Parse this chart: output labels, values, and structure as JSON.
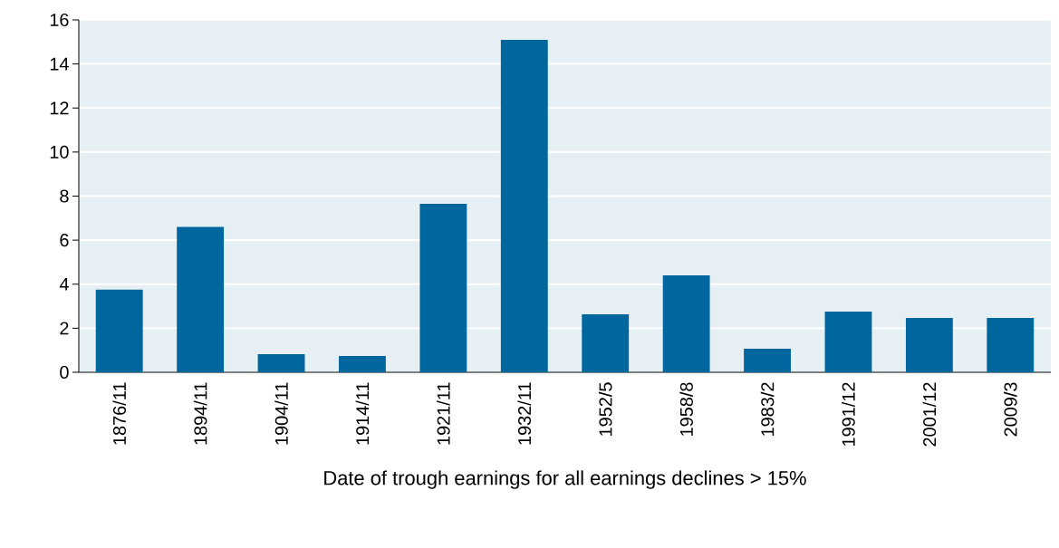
{
  "chart_data": {
    "type": "bar",
    "xlabel": "Date of trough earnings for all earnings declines > 15%",
    "categories": [
      "1876/11",
      "1894/11",
      "1904/11",
      "1914/11",
      "1921/11",
      "1932/11",
      "1952/5",
      "1958/8",
      "1983/2",
      "1991/12",
      "2001/12",
      "2009/3"
    ],
    "values": [
      3.75,
      6.6,
      0.82,
      0.74,
      7.65,
      15.1,
      2.63,
      4.4,
      1.07,
      2.76,
      2.47,
      2.47
    ],
    "color": "#00679e",
    "ylim": [
      0,
      16
    ],
    "yticks": [
      0,
      2,
      4,
      6,
      8,
      10,
      12,
      14,
      16
    ],
    "grid": "y"
  }
}
